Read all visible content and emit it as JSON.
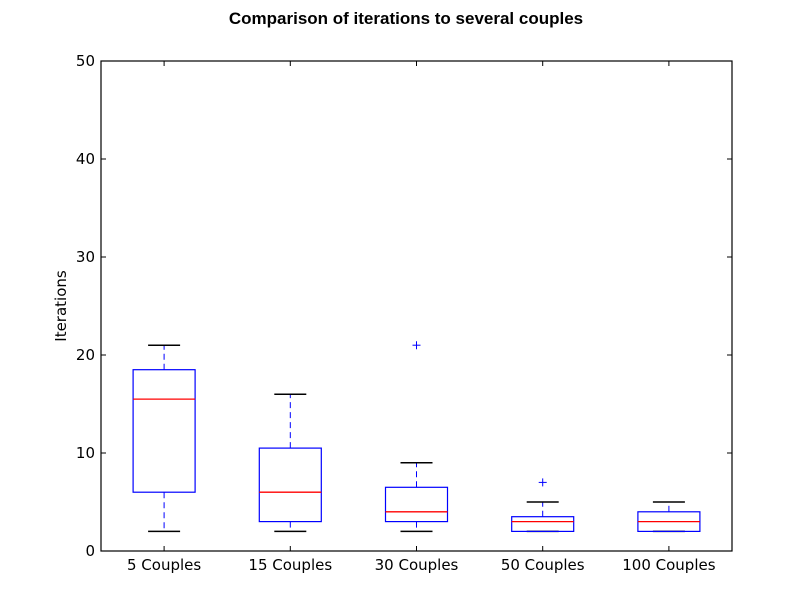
{
  "chart_data": {
    "type": "box",
    "title": "Comparison of iterations to several couples",
    "xlabel": "",
    "ylabel": "Iterations",
    "ylim": [
      0,
      50
    ],
    "yticks": [
      0,
      10,
      20,
      30,
      40,
      50
    ],
    "categories": [
      "5 Couples",
      "15 Couples",
      "30 Couples",
      "50 Couples",
      "100 Couples"
    ],
    "boxes": [
      {
        "whislo": 2,
        "q1": 6,
        "med": 15.5,
        "q3": 18.5,
        "whishi": 21,
        "fliers": []
      },
      {
        "whislo": 2,
        "q1": 3,
        "med": 6,
        "q3": 10.5,
        "whishi": 16,
        "fliers": []
      },
      {
        "whislo": 2,
        "q1": 3,
        "med": 4,
        "q3": 6.5,
        "whishi": 9,
        "fliers": [
          21
        ]
      },
      {
        "whislo": 2,
        "q1": 2,
        "med": 3,
        "q3": 3.5,
        "whishi": 5,
        "fliers": [
          7
        ]
      },
      {
        "whislo": 2,
        "q1": 2,
        "med": 3,
        "q3": 4,
        "whishi": 5,
        "fliers": []
      }
    ],
    "colors": {
      "box": "#0000ff",
      "median": "#ff0000",
      "cap": "#000000",
      "flier": "#0000ff"
    },
    "grid": false
  }
}
